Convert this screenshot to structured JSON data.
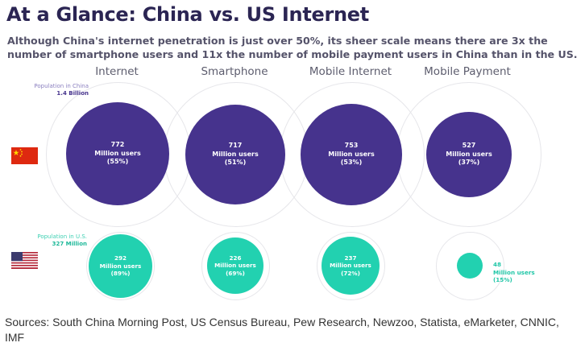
{
  "title": "At a Glance: China vs. US Internet",
  "subtitle": "Although China's internet penetration is just over 50%, its sheer scale means there are 3x the number of smartphone users and 11x the number of mobile payment users in China than in the US.",
  "columns": [
    {
      "label": "Internet"
    },
    {
      "label": "Smartphone"
    },
    {
      "label": "Mobile Internet"
    },
    {
      "label": "Mobile Payment"
    }
  ],
  "china": {
    "flag_icon": "china-flag-icon",
    "population_label": "Population in China",
    "population_value": "1.4 Billion",
    "color": "#46338d",
    "values": [
      {
        "number": "772",
        "unit": "Million users",
        "share": "(55%)"
      },
      {
        "number": "717",
        "unit": "Million users",
        "share": "(51%)"
      },
      {
        "number": "753",
        "unit": "Million users",
        "share": "(53%)"
      },
      {
        "number": "527",
        "unit": "Million users",
        "share": "(37%)"
      }
    ]
  },
  "us": {
    "flag_icon": "us-flag-icon",
    "population_label": "Population in U.S.",
    "population_value": "327 Million",
    "color": "#22d1b0",
    "values": [
      {
        "number": "292",
        "unit": "Million users",
        "share": "(89%)"
      },
      {
        "number": "226",
        "unit": "Million users",
        "share": "(69%)"
      },
      {
        "number": "237",
        "unit": "Million users",
        "share": "(72%)"
      },
      {
        "number": "48",
        "unit": "Million users",
        "share": "(15%)"
      }
    ]
  },
  "sources": "Sources: South China Morning Post, US Census Bureau, Pew Research, Newzoo, Statista, eMarketer, CNNIC, IMF"
}
